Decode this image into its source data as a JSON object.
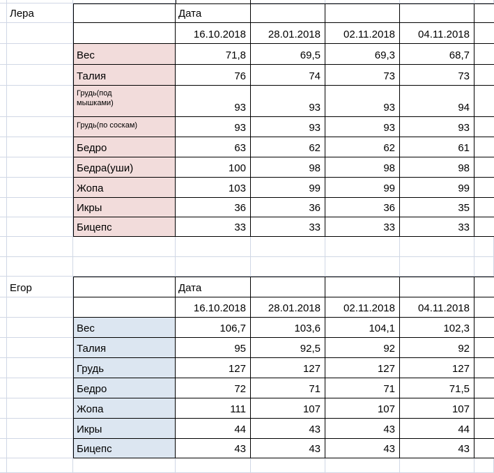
{
  "people": [
    {
      "name": "Лера"
    },
    {
      "name": "Егор"
    }
  ],
  "tables": {
    "lera": {
      "header_label": "Дата",
      "dates": [
        "16.10.2018",
        "28.01.2018",
        "02.11.2018",
        "04.11.2018"
      ],
      "rows": [
        {
          "label": "Вес",
          "values": [
            "71,8",
            "69,5",
            "69,3",
            "68,7"
          ]
        },
        {
          "label": "Талия",
          "values": [
            "76",
            "74",
            "73",
            "73"
          ]
        },
        {
          "label": "Грудь(под мышками)",
          "values": [
            "93",
            "93",
            "93",
            "94"
          ]
        },
        {
          "label": "Грудь(по соскам)",
          "values": [
            "93",
            "93",
            "93",
            "93"
          ]
        },
        {
          "label": "Бедро",
          "values": [
            "63",
            "62",
            "62",
            "61"
          ]
        },
        {
          "label": "Бедра(уши)",
          "values": [
            "100",
            "98",
            "98",
            "98"
          ]
        },
        {
          "label": "Жопа",
          "values": [
            "103",
            "99",
            "99",
            "99"
          ]
        },
        {
          "label": "Икры",
          "values": [
            "36",
            "36",
            "36",
            "35"
          ]
        },
        {
          "label": "Бицепс",
          "values": [
            "33",
            "33",
            "33",
            "33"
          ]
        }
      ]
    },
    "egor": {
      "header_label": "Дата",
      "dates": [
        "16.10.2018",
        "28.01.2018",
        "02.11.2018",
        "04.11.2018"
      ],
      "rows": [
        {
          "label": "Вес",
          "values": [
            "106,7",
            "103,6",
            "104,1",
            "102,3"
          ]
        },
        {
          "label": "Талия",
          "values": [
            "95",
            "92,5",
            "92",
            "92"
          ]
        },
        {
          "label": "Грудь",
          "values": [
            "127",
            "127",
            "127",
            "127"
          ]
        },
        {
          "label": "Бедро",
          "values": [
            "72",
            "71",
            "71",
            "71,5"
          ]
        },
        {
          "label": "Жопа",
          "values": [
            "111",
            "107",
            "107",
            "107"
          ]
        },
        {
          "label": "Икры",
          "values": [
            "44",
            "43",
            "43",
            "44"
          ]
        },
        {
          "label": "Бицепс",
          "values": [
            "43",
            "43",
            "43",
            "43"
          ]
        }
      ]
    }
  },
  "colors": {
    "lera_label_fill": "#f2dcdb",
    "egor_label_fill": "#dce6f1",
    "gridline": "#d0d7e5",
    "table_border": "#000000"
  }
}
